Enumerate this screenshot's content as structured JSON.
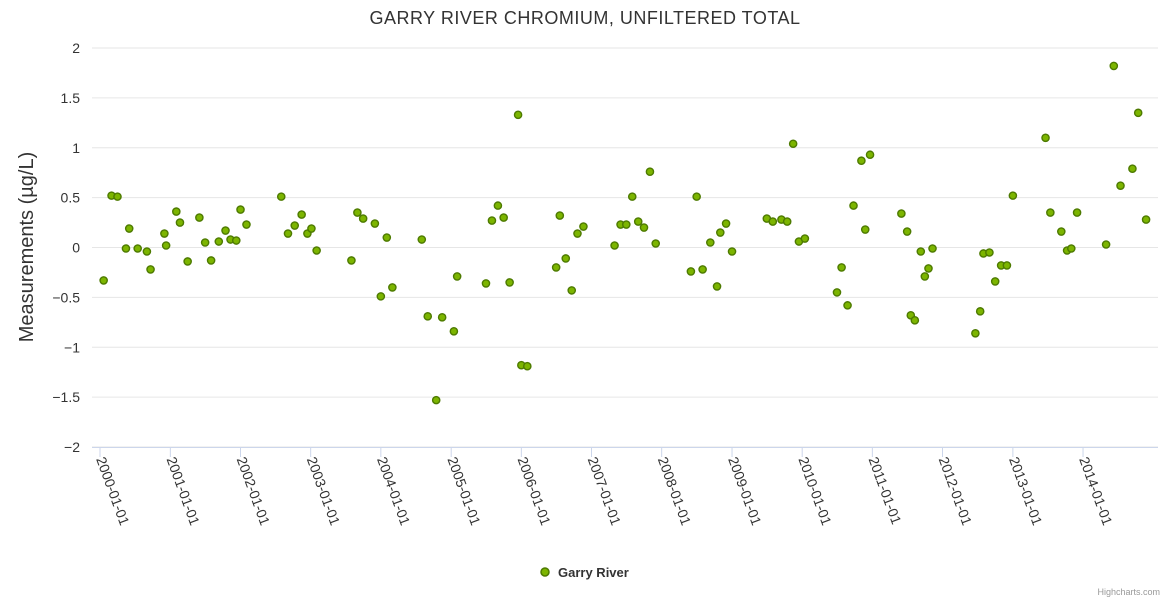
{
  "chart_data": {
    "type": "scatter",
    "title": "GARRY RIVER CHROMIUM, UNFILTERED TOTAL",
    "ylabel": "Measurements (µg/L)",
    "ylim": [
      -2,
      2
    ],
    "yticks": [
      2,
      1.5,
      1,
      0.5,
      0,
      -0.5,
      -1,
      -1.5,
      -2
    ],
    "ytick_labels": [
      "2",
      "1.5",
      "1",
      "0.5",
      "0",
      "−0.5",
      "−1",
      "−1.5",
      "−2"
    ],
    "xlim": [
      "2000-01-01",
      "2014-12-31"
    ],
    "xtick_labels": [
      "2000-01-01",
      "2001-01-01",
      "2002-01-01",
      "2003-01-01",
      "2004-01-01",
      "2005-01-01",
      "2006-01-01",
      "2007-01-01",
      "2008-01-01",
      "2009-01-01",
      "2010-01-01",
      "2011-01-01",
      "2012-01-01",
      "2013-01-01",
      "2014-01-01"
    ],
    "grid": true,
    "legend_position": "bottom-center",
    "series": [
      {
        "name": "Garry River",
        "color": "#7cb500",
        "points": [
          [
            "2000-01-20",
            -0.33
          ],
          [
            "2000-03-01",
            0.52
          ],
          [
            "2000-04-01",
            0.51
          ],
          [
            "2000-05-15",
            -0.01
          ],
          [
            "2000-06-01",
            0.19
          ],
          [
            "2000-07-15",
            -0.01
          ],
          [
            "2000-09-01",
            -0.04
          ],
          [
            "2000-09-20",
            -0.22
          ],
          [
            "2000-12-01",
            0.14
          ],
          [
            "2000-12-10",
            0.02
          ],
          [
            "2001-02-01",
            0.36
          ],
          [
            "2001-02-20",
            0.25
          ],
          [
            "2001-04-01",
            -0.14
          ],
          [
            "2001-06-01",
            0.3
          ],
          [
            "2001-07-01",
            0.05
          ],
          [
            "2001-08-01",
            -0.13
          ],
          [
            "2001-09-10",
            0.06
          ],
          [
            "2001-10-15",
            0.17
          ],
          [
            "2001-11-10",
            0.08
          ],
          [
            "2001-12-10",
            0.07
          ],
          [
            "2002-01-01",
            0.38
          ],
          [
            "2002-02-01",
            0.23
          ],
          [
            "2002-08-01",
            0.51
          ],
          [
            "2002-09-05",
            0.14
          ],
          [
            "2002-10-10",
            0.22
          ],
          [
            "2002-11-15",
            0.33
          ],
          [
            "2002-12-15",
            0.14
          ],
          [
            "2003-01-05",
            0.19
          ],
          [
            "2003-02-01",
            -0.03
          ],
          [
            "2003-08-01",
            -0.13
          ],
          [
            "2003-09-01",
            0.35
          ],
          [
            "2003-10-01",
            0.29
          ],
          [
            "2003-12-01",
            0.24
          ],
          [
            "2004-01-01",
            -0.49
          ],
          [
            "2004-02-01",
            0.1
          ],
          [
            "2004-03-01",
            -0.4
          ],
          [
            "2004-08-01",
            0.08
          ],
          [
            "2004-09-01",
            -0.69
          ],
          [
            "2004-10-15",
            -1.53
          ],
          [
            "2004-11-15",
            -0.7
          ],
          [
            "2005-01-15",
            -0.84
          ],
          [
            "2005-02-01",
            -0.29
          ],
          [
            "2005-07-01",
            -0.36
          ],
          [
            "2005-08-01",
            0.27
          ],
          [
            "2005-09-01",
            0.42
          ],
          [
            "2005-10-01",
            0.3
          ],
          [
            "2005-11-01",
            -0.35
          ],
          [
            "2005-12-15",
            1.33
          ],
          [
            "2006-01-01",
            -1.18
          ],
          [
            "2006-02-01",
            -1.19
          ],
          [
            "2006-07-01",
            -0.2
          ],
          [
            "2006-07-20",
            0.32
          ],
          [
            "2006-08-20",
            -0.11
          ],
          [
            "2006-09-20",
            -0.43
          ],
          [
            "2006-10-20",
            0.14
          ],
          [
            "2006-11-20",
            0.21
          ],
          [
            "2007-05-01",
            0.02
          ],
          [
            "2007-06-01",
            0.23
          ],
          [
            "2007-07-01",
            0.23
          ],
          [
            "2007-08-01",
            0.51
          ],
          [
            "2007-09-01",
            0.26
          ],
          [
            "2007-10-01",
            0.2
          ],
          [
            "2007-11-01",
            0.76
          ],
          [
            "2007-12-01",
            0.04
          ],
          [
            "2008-06-01",
            -0.24
          ],
          [
            "2008-07-01",
            0.51
          ],
          [
            "2008-08-01",
            -0.22
          ],
          [
            "2008-09-10",
            0.05
          ],
          [
            "2008-10-15",
            -0.39
          ],
          [
            "2008-11-01",
            0.15
          ],
          [
            "2008-12-01",
            0.24
          ],
          [
            "2009-01-01",
            -0.04
          ],
          [
            "2009-07-01",
            0.29
          ],
          [
            "2009-08-01",
            0.26
          ],
          [
            "2009-09-15",
            0.28
          ],
          [
            "2009-10-15",
            0.26
          ],
          [
            "2009-11-15",
            1.04
          ],
          [
            "2009-12-15",
            0.06
          ],
          [
            "2010-01-15",
            0.09
          ],
          [
            "2010-07-01",
            -0.45
          ],
          [
            "2010-07-25",
            -0.2
          ],
          [
            "2010-08-25",
            -0.58
          ],
          [
            "2010-09-25",
            0.42
          ],
          [
            "2010-11-05",
            0.87
          ],
          [
            "2010-11-25",
            0.18
          ],
          [
            "2010-12-20",
            0.93
          ],
          [
            "2011-06-01",
            0.34
          ],
          [
            "2011-07-01",
            0.16
          ],
          [
            "2011-07-20",
            -0.68
          ],
          [
            "2011-08-10",
            -0.73
          ],
          [
            "2011-09-10",
            -0.04
          ],
          [
            "2011-10-01",
            -0.29
          ],
          [
            "2011-10-20",
            -0.21
          ],
          [
            "2011-11-10",
            -0.01
          ],
          [
            "2012-06-20",
            -0.86
          ],
          [
            "2012-07-15",
            -0.64
          ],
          [
            "2012-08-01",
            -0.06
          ],
          [
            "2012-09-01",
            -0.05
          ],
          [
            "2012-10-01",
            -0.34
          ],
          [
            "2012-11-01",
            -0.18
          ],
          [
            "2012-12-01",
            -0.18
          ],
          [
            "2013-01-01",
            0.52
          ],
          [
            "2013-06-20",
            1.1
          ],
          [
            "2013-07-15",
            0.35
          ],
          [
            "2013-09-10",
            0.16
          ],
          [
            "2013-10-10",
            -0.03
          ],
          [
            "2013-11-01",
            -0.01
          ],
          [
            "2013-12-01",
            0.35
          ],
          [
            "2014-05-01",
            0.03
          ],
          [
            "2014-06-10",
            1.82
          ],
          [
            "2014-07-15",
            0.62
          ],
          [
            "2014-09-15",
            0.79
          ],
          [
            "2014-10-15",
            1.35
          ],
          [
            "2014-11-25",
            0.28
          ]
        ]
      }
    ]
  },
  "credits": "Highcharts.com"
}
